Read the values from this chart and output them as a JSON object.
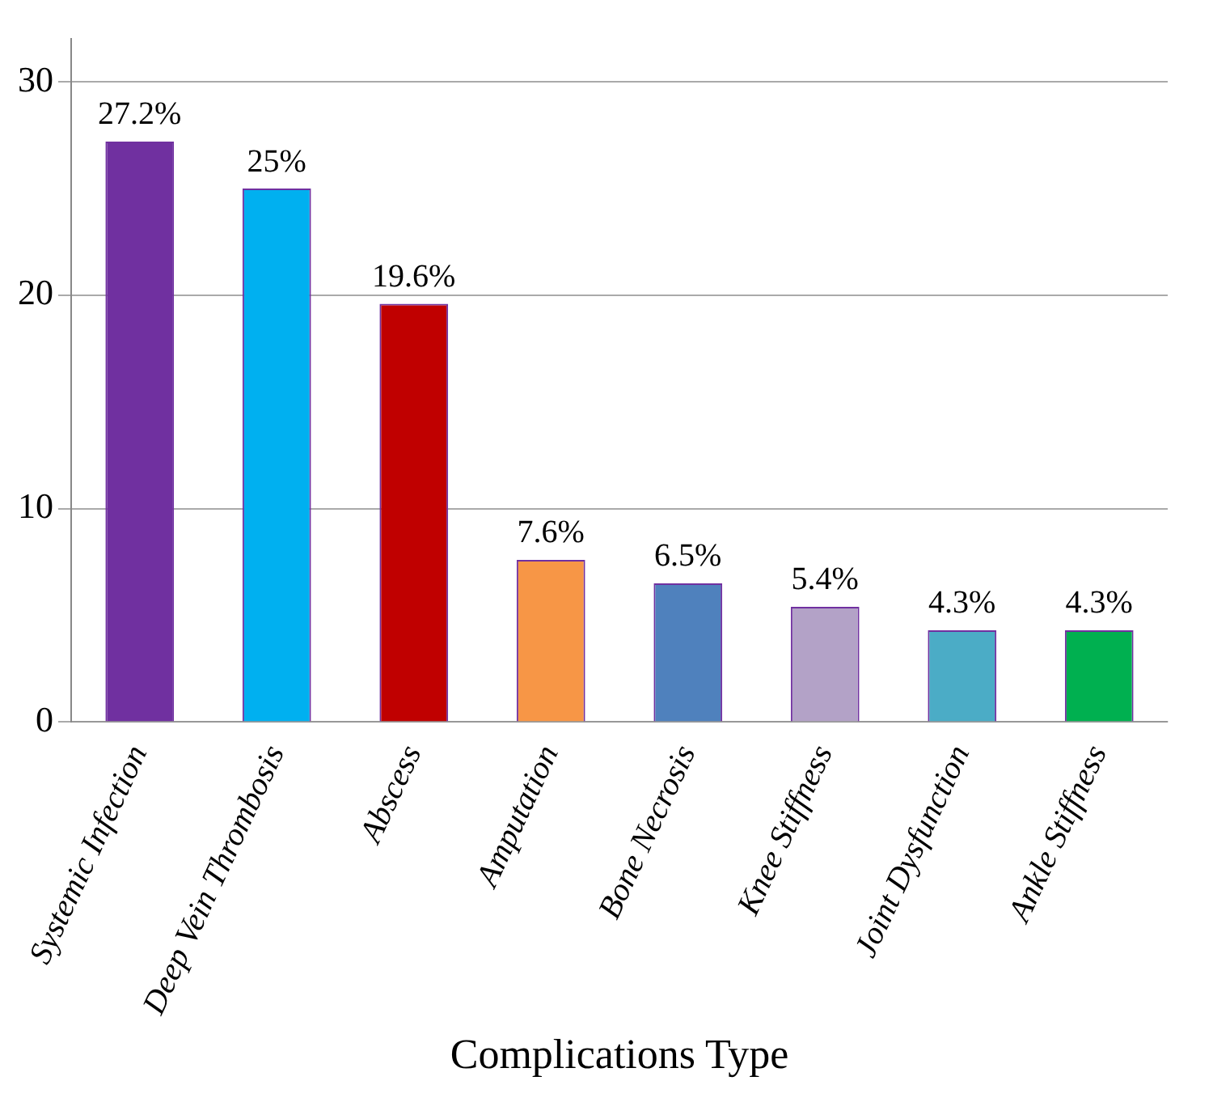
{
  "chart_data": {
    "type": "bar",
    "xlabel": "Complications Type",
    "categories": [
      "Systemic Infection",
      "Deep Vein Thrombosis",
      "Abscess",
      "Amputation",
      "Bone Necrosis",
      "Knee Stiffness",
      "Joint Dysfunction",
      "Ankle Stiffness"
    ],
    "values": [
      27.2,
      25,
      19.6,
      7.6,
      6.5,
      5.4,
      4.3,
      4.3
    ],
    "value_labels": [
      "27.2%",
      "25%",
      "19.6%",
      "7.6%",
      "6.5%",
      "5.4%",
      "4.3%",
      "4.3%"
    ],
    "colors": [
      "#7030a0",
      "#00b0f0",
      "#c00000",
      "#f79646",
      "#4f81bd",
      "#b3a2c7",
      "#4bacc6",
      "#00b050"
    ],
    "ylim": [
      0,
      32
    ],
    "yticks": [
      0,
      10,
      20,
      30
    ],
    "grid": "y",
    "legend": false
  }
}
